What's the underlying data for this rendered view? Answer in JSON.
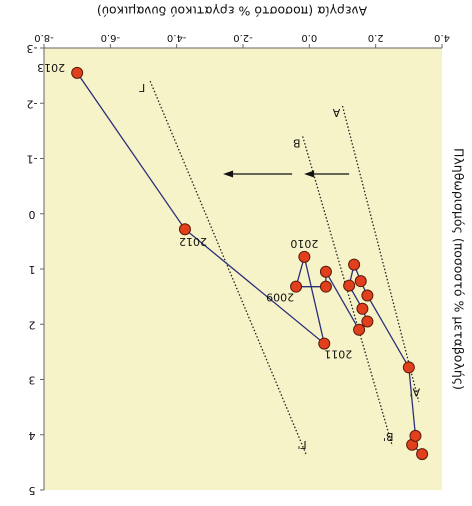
{
  "chart_data": {
    "type": "scatter",
    "title": "",
    "xlabel": "Ανεργία (ποσοστό % εργατικού δυναμικού)",
    "ylabel": "Πληθωρισμός (ποσοστό % μεταβολής)",
    "orientation": "rotated-180",
    "xlim": [
      4.0,
      -8.0
    ],
    "ylim": [
      5,
      -3
    ],
    "x_ticks": [
      4.0,
      2.0,
      0.0,
      -2.0,
      -4.0,
      -6.0,
      -8.0
    ],
    "x_tick_labels": [
      "4.0",
      "2.0",
      "0.0",
      "-2.0",
      "-4.0",
      "-6.0",
      "-8.0"
    ],
    "y_ticks": [
      5,
      4,
      3,
      2,
      1,
      0,
      -1,
      -2,
      -3
    ],
    "y_tick_labels": [
      "5",
      "4",
      "3",
      "2",
      "1",
      "0",
      "-1",
      "-2",
      "-3"
    ],
    "grid": false,
    "background": "#f7f3c8",
    "point_color": "#e2401c",
    "path_color": "#2a2f7a",
    "series": [
      {
        "points": [
          {
            "x": 3.4,
            "y": 4.35,
            "label": ""
          },
          {
            "x": 3.1,
            "y": 4.18,
            "label": ""
          },
          {
            "x": 3.2,
            "y": 4.02,
            "label": ""
          },
          {
            "x": 3.0,
            "y": 2.78,
            "label": ""
          },
          {
            "x": 1.75,
            "y": 1.48,
            "label": ""
          },
          {
            "x": 1.55,
            "y": 1.22,
            "label": ""
          },
          {
            "x": 1.35,
            "y": 0.92,
            "label": ""
          },
          {
            "x": 1.2,
            "y": 1.3,
            "label": ""
          },
          {
            "x": 1.6,
            "y": 1.72,
            "label": ""
          },
          {
            "x": 1.75,
            "y": 1.95,
            "label": ""
          },
          {
            "x": 1.5,
            "y": 2.1,
            "label": ""
          },
          {
            "x": 0.5,
            "y": 1.05,
            "label": ""
          },
          {
            "x": 0.5,
            "y": 1.32,
            "label": ""
          },
          {
            "x": -0.4,
            "y": 1.32,
            "label": "2009"
          },
          {
            "x": -0.15,
            "y": 0.78,
            "label": "2010"
          },
          {
            "x": 0.45,
            "y": 2.35,
            "label": "2011"
          },
          {
            "x": -3.75,
            "y": 0.28,
            "label": "2012"
          },
          {
            "x": -7.0,
            "y": -2.55,
            "label": "2013"
          }
        ]
      }
    ],
    "reference_lines": [
      {
        "name": "A",
        "x1": 1.0,
        "y1": -1.95,
        "x2": 3.3,
        "y2": 3.4
      },
      {
        "name": "A'",
        "x1": 1.0,
        "y1": -1.95,
        "x2": 3.3,
        "y2": 3.4
      },
      {
        "name": "B",
        "x1": -0.2,
        "y1": -1.4,
        "x2": 2.5,
        "y2": 4.2
      },
      {
        "name": "B'",
        "x1": -0.2,
        "y1": -1.4,
        "x2": 2.5,
        "y2": 4.2
      },
      {
        "name": "Γ",
        "x1": -4.8,
        "y1": -2.4,
        "x2": -0.1,
        "y2": 4.35
      },
      {
        "name": "Γ'",
        "x1": -4.8,
        "y1": -2.4,
        "x2": -0.1,
        "y2": 4.35
      }
    ],
    "line_labels": {
      "A_top": "A",
      "A_bottom": "A'",
      "B_top": "B",
      "B_bottom": "B'",
      "G_top": "Γ",
      "G_bottom": "Γ'"
    },
    "arrows": [
      {
        "from": [
          1.2,
          -0.72
        ],
        "to": [
          -2.6,
          -0.72
        ]
      }
    ]
  }
}
